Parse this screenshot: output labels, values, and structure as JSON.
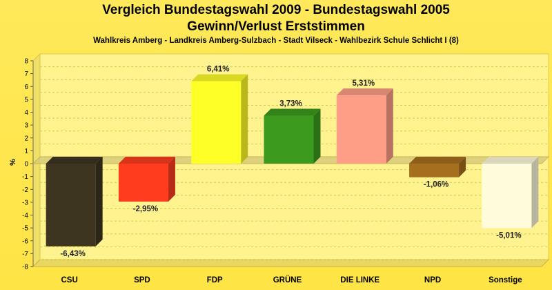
{
  "chart_data": {
    "type": "bar",
    "title_line1": "Vergleich Bundestagswahl 2009 - Bundestagswahl 2005",
    "title_line2": "Gewinn/Verlust Erststimmen",
    "subtitle": "Wahlkreis Amberg - Landkreis Amberg-Sulzbach - Stadt Vilseck - Wahlbezirk Schule Schlicht I (8)",
    "xlabel": "",
    "ylabel": "%",
    "ylim": [
      -8,
      8
    ],
    "yticks": [
      "8",
      "7",
      "6",
      "5",
      "4",
      "3",
      "2",
      "1",
      "0",
      "-1",
      "-2",
      "-3",
      "-4",
      "-5",
      "-6",
      "-7",
      "-8"
    ],
    "grid": true,
    "categories": [
      "CSU",
      "SPD",
      "FDP",
      "GRÜNE",
      "DIE LINKE",
      "NPD",
      "Sonstige"
    ],
    "values": [
      -6.43,
      -2.95,
      6.41,
      3.73,
      5.31,
      -1.06,
      -5.01
    ],
    "value_labels": [
      "-6,43%",
      "-2,95%",
      "6,41%",
      "3,73%",
      "5,31%",
      "-1,06%",
      "-5,01%"
    ],
    "colors": [
      "#3d3520",
      "#ff3c1e",
      "#ffff28",
      "#3c9a1e",
      "#ff9e87",
      "#a66f1e",
      "#fffcdc"
    ],
    "background_color": "#ffe84a"
  }
}
